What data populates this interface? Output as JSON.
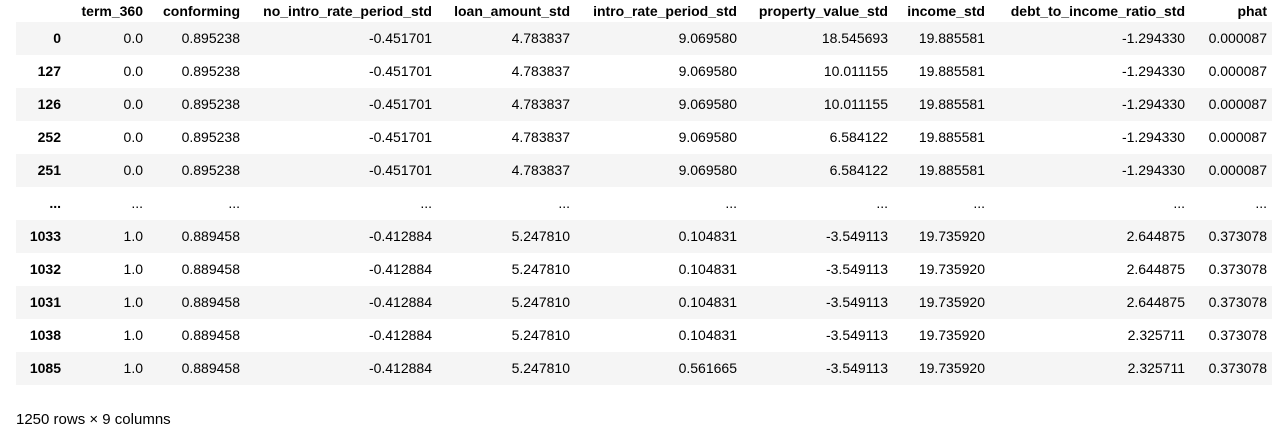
{
  "table": {
    "index_header": "",
    "columns": [
      "term_360",
      "conforming",
      "no_intro_rate_period_std",
      "loan_amount_std",
      "intro_rate_period_std",
      "property_value_std",
      "income_std",
      "debt_to_income_ratio_std",
      "phat"
    ],
    "rows": [
      {
        "index": "0",
        "cells": [
          "0.0",
          "0.895238",
          "-0.451701",
          "4.783837",
          "9.069580",
          "18.545693",
          "19.885581",
          "-1.294330",
          "0.000087"
        ]
      },
      {
        "index": "127",
        "cells": [
          "0.0",
          "0.895238",
          "-0.451701",
          "4.783837",
          "9.069580",
          "10.011155",
          "19.885581",
          "-1.294330",
          "0.000087"
        ]
      },
      {
        "index": "126",
        "cells": [
          "0.0",
          "0.895238",
          "-0.451701",
          "4.783837",
          "9.069580",
          "10.011155",
          "19.885581",
          "-1.294330",
          "0.000087"
        ]
      },
      {
        "index": "252",
        "cells": [
          "0.0",
          "0.895238",
          "-0.451701",
          "4.783837",
          "9.069580",
          "6.584122",
          "19.885581",
          "-1.294330",
          "0.000087"
        ]
      },
      {
        "index": "251",
        "cells": [
          "0.0",
          "0.895238",
          "-0.451701",
          "4.783837",
          "9.069580",
          "6.584122",
          "19.885581",
          "-1.294330",
          "0.000087"
        ]
      },
      {
        "index": "...",
        "cells": [
          "...",
          "...",
          "...",
          "...",
          "...",
          "...",
          "...",
          "...",
          "..."
        ]
      },
      {
        "index": "1033",
        "cells": [
          "1.0",
          "0.889458",
          "-0.412884",
          "5.247810",
          "0.104831",
          "-3.549113",
          "19.735920",
          "2.644875",
          "0.373078"
        ]
      },
      {
        "index": "1032",
        "cells": [
          "1.0",
          "0.889458",
          "-0.412884",
          "5.247810",
          "0.104831",
          "-3.549113",
          "19.735920",
          "2.644875",
          "0.373078"
        ]
      },
      {
        "index": "1031",
        "cells": [
          "1.0",
          "0.889458",
          "-0.412884",
          "5.247810",
          "0.104831",
          "-3.549113",
          "19.735920",
          "2.644875",
          "0.373078"
        ]
      },
      {
        "index": "1038",
        "cells": [
          "1.0",
          "0.889458",
          "-0.412884",
          "5.247810",
          "0.104831",
          "-3.549113",
          "19.735920",
          "2.325711",
          "0.373078"
        ]
      },
      {
        "index": "1085",
        "cells": [
          "1.0",
          "0.889458",
          "-0.412884",
          "5.247810",
          "0.561665",
          "-3.549113",
          "19.735920",
          "2.325711",
          "0.373078"
        ]
      }
    ]
  },
  "footer": {
    "shape_text": "1250 rows × 9 columns"
  },
  "colors": {
    "stripe": "#f5f5f5",
    "background": "#ffffff",
    "text": "#000000"
  }
}
